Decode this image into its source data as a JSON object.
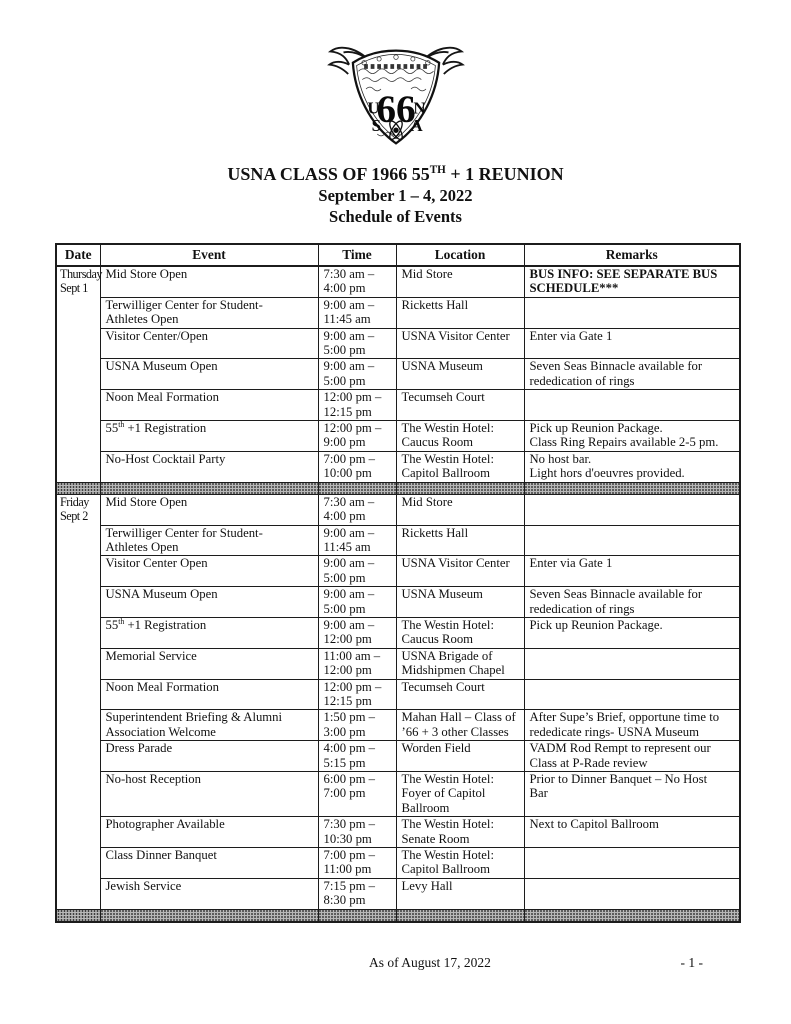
{
  "colors": {
    "text": "#111111",
    "border": "#1c1c1c",
    "divider_base": "#b8b8b8",
    "divider_dot": "#3f3f3f"
  },
  "logo": {
    "crest_number": "66",
    "crest_letters": {
      "u": "U",
      "s": "S",
      "n": "N",
      "a": "A"
    }
  },
  "header": {
    "title": "USNA CLASS OF 1966 55^{TH} + 1 REUNION",
    "date_range": "September 1 – 4, 2022",
    "subtitle": "Schedule of Events"
  },
  "table": {
    "columns": [
      "Date",
      "Event",
      "Time",
      "Location",
      "Remarks"
    ],
    "sections": [
      {
        "date_line1": "Thursday",
        "date_line2": "Sept 1",
        "rows": [
          {
            "event": [
              "Mid Store Open"
            ],
            "time": [
              "7:30 am –",
              "4:00 pm"
            ],
            "location": [
              "Mid Store"
            ],
            "remarks": [
              "BUS INFO: SEE SEPARATE BUS",
              "SCHEDULE***"
            ],
            "remarks_bold": true
          },
          {
            "event": [
              "Terwilliger Center for Student-",
              "Athletes Open"
            ],
            "time": [
              "9:00 am –",
              "11:45 am"
            ],
            "location": [
              "Ricketts Hall"
            ],
            "remarks": []
          },
          {
            "event": [
              "Visitor Center/Open"
            ],
            "time": [
              "9:00 am –",
              "5:00 pm"
            ],
            "location": [
              "USNA Visitor Center"
            ],
            "remarks": [
              "Enter via Gate 1"
            ]
          },
          {
            "event": [
              "USNA Museum Open"
            ],
            "time": [
              "9:00 am –",
              "5:00 pm"
            ],
            "location": [
              "USNA Museum"
            ],
            "remarks": [
              "Seven Seas Binnacle available for",
              "rededication of rings"
            ]
          },
          {
            "event": [
              "Noon Meal Formation"
            ],
            "time": [
              "12:00 pm –",
              "12:15 pm"
            ],
            "location": [
              "Tecumseh Court"
            ],
            "remarks": []
          },
          {
            "event": [
              "55^{th} +1 Registration"
            ],
            "time": [
              "12:00 pm –",
              "9:00 pm"
            ],
            "location": [
              "The Westin Hotel:",
              "Caucus Room"
            ],
            "remarks": [
              "Pick up Reunion Package.",
              "Class Ring Repairs available 2-5 pm."
            ]
          },
          {
            "event": [
              "No-Host Cocktail Party"
            ],
            "time": [
              "7:00 pm –",
              "10:00 pm"
            ],
            "location": [
              "The Westin Hotel:",
              "Capitol Ballroom"
            ],
            "remarks": [
              "No host bar.",
              "Light hors d'oeuvres provided."
            ]
          }
        ]
      },
      {
        "date_line1": "Friday",
        "date_line2": "Sept 2",
        "rows": [
          {
            "event": [
              "Mid Store Open"
            ],
            "time": [
              "7:30 am –",
              "4:00 pm"
            ],
            "location": [
              "Mid Store"
            ],
            "remarks": []
          },
          {
            "event": [
              "Terwilliger Center for Student-",
              "Athletes Open"
            ],
            "time": [
              "9:00 am –",
              "11:45 am"
            ],
            "location": [
              "Ricketts Hall"
            ],
            "remarks": []
          },
          {
            "event": [
              "Visitor Center Open"
            ],
            "time": [
              "9:00 am –",
              "5:00 pm"
            ],
            "location": [
              "USNA Visitor Center"
            ],
            "remarks": [
              "Enter via Gate 1"
            ]
          },
          {
            "event": [
              "USNA Museum Open"
            ],
            "time": [
              "9:00 am –",
              "5:00 pm"
            ],
            "location": [
              "USNA Museum"
            ],
            "remarks": [
              "Seven Seas Binnacle available for",
              "rededication of rings"
            ]
          },
          {
            "event": [
              "55^{th} +1 Registration"
            ],
            "time": [
              "9:00 am –",
              "12:00 pm"
            ],
            "location": [
              "The Westin Hotel:",
              "Caucus Room"
            ],
            "remarks": [
              "Pick up Reunion Package."
            ]
          },
          {
            "event": [
              "Memorial Service"
            ],
            "time": [
              "11:00 am –",
              "12:00 pm"
            ],
            "location": [
              "USNA Brigade of",
              "Midshipmen Chapel"
            ],
            "remarks": []
          },
          {
            "event": [
              "Noon Meal Formation"
            ],
            "time": [
              "12:00 pm –",
              "12:15 pm"
            ],
            "location": [
              "Tecumseh Court"
            ],
            "remarks": []
          },
          {
            "event": [
              "Superintendent Briefing & Alumni",
              "Association Welcome"
            ],
            "time": [
              "1:50 pm –",
              "3:00 pm"
            ],
            "location": [
              "Mahan Hall – Class of",
              "’66 + 3 other Classes"
            ],
            "remarks": [
              "After Supe’s Brief, opportune time to",
              "rededicate rings- USNA Museum"
            ]
          },
          {
            "event": [
              "Dress Parade"
            ],
            "time": [
              "4:00 pm –",
              "5:15 pm"
            ],
            "location": [
              "Worden Field"
            ],
            "remarks": [
              "VADM Rod Rempt to represent our",
              "Class at P-Rade review"
            ]
          },
          {
            "event": [
              "No-host Reception"
            ],
            "time": [
              "6:00 pm –",
              "7:00 pm"
            ],
            "location": [
              "The Westin Hotel:",
              "Foyer of Capitol",
              "Ballroom"
            ],
            "remarks": [
              "Prior to Dinner Banquet – No Host",
              "Bar"
            ]
          },
          {
            "event": [
              "Photographer Available"
            ],
            "time": [
              "7:30 pm –",
              "10:30 pm"
            ],
            "location": [
              "The Westin Hotel:",
              "Senate Room"
            ],
            "remarks": [
              "Next to Capitol Ballroom"
            ]
          },
          {
            "event": [
              "Class Dinner Banquet"
            ],
            "time": [
              "7:00 pm –",
              "11:00 pm"
            ],
            "location": [
              "The Westin Hotel:",
              "Capitol Ballroom"
            ],
            "remarks": []
          },
          {
            "event": [
              "Jewish Service"
            ],
            "time": [
              "7:15 pm –",
              "8:30 pm"
            ],
            "location": [
              "Levy Hall"
            ],
            "remarks": []
          }
        ]
      }
    ]
  },
  "footer": {
    "as_of": "As of August 17, 2022",
    "page_number": "- 1 -"
  }
}
